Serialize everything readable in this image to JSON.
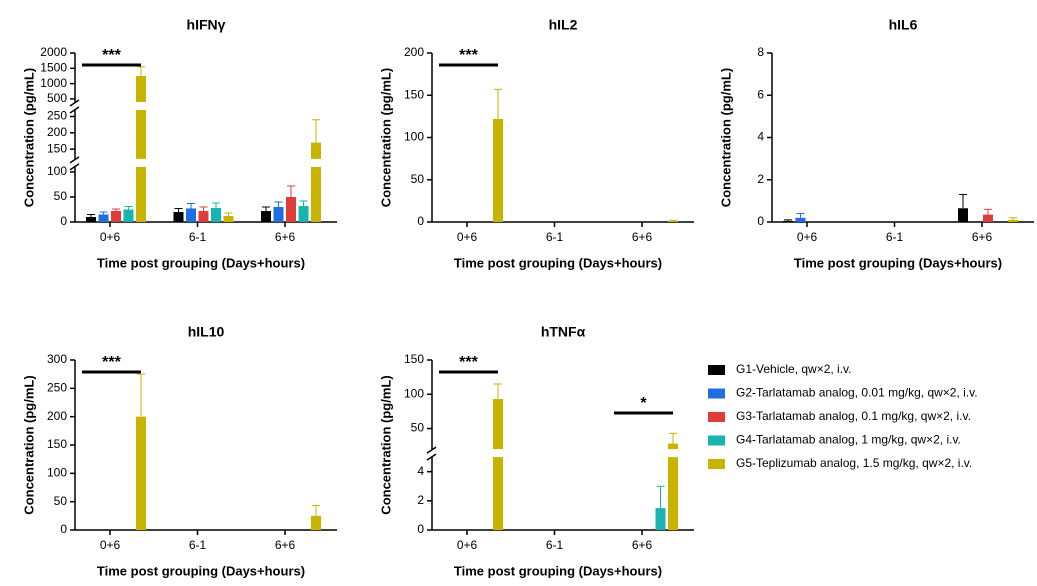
{
  "chart_data": [
    {
      "type": "bar",
      "title": "hIFNγ",
      "xlabel": "Time post grouping (Days+hours)",
      "ylabel": "Concentration (pg/mL)",
      "categories": [
        "0+6",
        "6-1",
        "6+6"
      ],
      "segments": [
        {
          "ylim": [
            0,
            110
          ],
          "yticks": [
            0,
            50,
            100
          ]
        },
        {
          "ylim": [
            120,
            270
          ],
          "yticks": [
            150,
            200,
            250
          ]
        },
        {
          "ylim": [
            400,
            2000
          ],
          "yticks": [
            500,
            1000,
            1500,
            2000
          ]
        }
      ],
      "series": [
        {
          "name": "G1-Vehicle, qw×2, i.v.",
          "color": "#000000",
          "values": [
            10,
            20,
            22
          ],
          "errors": [
            5,
            7,
            8
          ]
        },
        {
          "name": "G2-Tarlatamab analog, 0.01 mg/kg, qw×2, i.v.",
          "color": "#1f6fe0",
          "values": [
            15,
            27,
            30
          ],
          "errors": [
            5,
            10,
            10
          ]
        },
        {
          "name": "G3-Tarlatamab analog, 0.1 mg/kg, qw×2, i.v.",
          "color": "#e03c3c",
          "values": [
            22,
            22,
            50
          ],
          "errors": [
            4,
            8,
            22
          ]
        },
        {
          "name": "G4-Tarlatamab analog, 1 mg/kg, qw×2, i.v.",
          "color": "#18b4b0",
          "values": [
            25,
            28,
            32
          ],
          "errors": [
            6,
            10,
            10
          ]
        },
        {
          "name": "G5-Teplizumab analog, 1.5 mg/kg, qw×2, i.v.",
          "color": "#c8b400",
          "values": [
            1250,
            12,
            170
          ],
          "errors": [
            300,
            6,
            70
          ]
        }
      ],
      "annotations": [
        {
          "text": "***",
          "category": "0+6"
        }
      ]
    },
    {
      "type": "bar",
      "title": "hIL2",
      "xlabel": "Time post grouping (Days+hours)",
      "ylabel": "Concentration (pg/mL)",
      "categories": [
        "0+6",
        "6-1",
        "6+6"
      ],
      "ylim": [
        0,
        200
      ],
      "yticks": [
        0,
        50,
        100,
        150,
        200
      ],
      "series": [
        {
          "name": "G1-Vehicle, qw×2, i.v.",
          "color": "#000000",
          "values": [
            0,
            0,
            0
          ],
          "errors": [
            0,
            0,
            0
          ]
        },
        {
          "name": "G2-Tarlatamab analog, 0.01 mg/kg, qw×2, i.v.",
          "color": "#1f6fe0",
          "values": [
            0,
            0,
            0
          ],
          "errors": [
            0,
            0,
            0
          ]
        },
        {
          "name": "G3-Tarlatamab analog, 0.1 mg/kg, qw×2, i.v.",
          "color": "#e03c3c",
          "values": [
            0,
            0,
            0
          ],
          "errors": [
            0,
            0,
            0
          ]
        },
        {
          "name": "G4-Tarlatamab analog, 1 mg/kg, qw×2, i.v.",
          "color": "#18b4b0",
          "values": [
            0,
            0,
            0
          ],
          "errors": [
            0,
            0,
            0
          ]
        },
        {
          "name": "G5-Teplizumab analog, 1.5 mg/kg, qw×2, i.v.",
          "color": "#c8b400",
          "values": [
            122,
            0,
            1
          ],
          "errors": [
            35,
            0,
            1
          ]
        }
      ],
      "annotations": [
        {
          "text": "***",
          "category": "0+6"
        }
      ]
    },
    {
      "type": "bar",
      "title": "hIL6",
      "xlabel": "Time post grouping (Days+hours)",
      "ylabel": "Concentration (pg/mL)",
      "categories": [
        "0+6",
        "6-1",
        "6+6"
      ],
      "ylim": [
        0,
        8
      ],
      "yticks": [
        0,
        2,
        4,
        6,
        8
      ],
      "series": [
        {
          "name": "G1-Vehicle, qw×2, i.v.",
          "color": "#000000",
          "values": [
            0.05,
            0,
            0.65
          ],
          "errors": [
            0.05,
            0,
            0.65
          ]
        },
        {
          "name": "G2-Tarlatamab analog, 0.01 mg/kg, qw×2, i.v.",
          "color": "#1f6fe0",
          "values": [
            0.2,
            0,
            0
          ],
          "errors": [
            0.2,
            0,
            0
          ]
        },
        {
          "name": "G3-Tarlatamab analog, 0.1 mg/kg, qw×2, i.v.",
          "color": "#e03c3c",
          "values": [
            0,
            0,
            0.35
          ],
          "errors": [
            0,
            0,
            0.25
          ]
        },
        {
          "name": "G4-Tarlatamab analog, 1 mg/kg, qw×2, i.v.",
          "color": "#18b4b0",
          "values": [
            0,
            0,
            0
          ],
          "errors": [
            0,
            0,
            0
          ]
        },
        {
          "name": "G5-Teplizumab analog, 1.5 mg/kg, qw×2, i.v.",
          "color": "#c8b400",
          "values": [
            0,
            0,
            0.1
          ],
          "errors": [
            0,
            0,
            0.1
          ]
        }
      ]
    },
    {
      "type": "bar",
      "title": "hIL10",
      "xlabel": "Time post grouping (Days+hours)",
      "ylabel": "Concentration (pg/mL)",
      "categories": [
        "0+6",
        "6-1",
        "6+6"
      ],
      "ylim": [
        0,
        300
      ],
      "yticks": [
        0,
        50,
        100,
        150,
        200,
        250,
        300
      ],
      "series": [
        {
          "name": "G1-Vehicle, qw×2, i.v.",
          "color": "#000000",
          "values": [
            0,
            0,
            0
          ],
          "errors": [
            0,
            0,
            0
          ]
        },
        {
          "name": "G2-Tarlatamab analog, 0.01 mg/kg, qw×2, i.v.",
          "color": "#1f6fe0",
          "values": [
            0,
            0,
            0
          ],
          "errors": [
            0,
            0,
            0
          ]
        },
        {
          "name": "G3-Tarlatamab analog, 0.1 mg/kg, qw×2, i.v.",
          "color": "#e03c3c",
          "values": [
            0,
            0,
            0
          ],
          "errors": [
            0,
            0,
            0
          ]
        },
        {
          "name": "G4-Tarlatamab analog, 1 mg/kg, qw×2, i.v.",
          "color": "#18b4b0",
          "values": [
            0,
            0,
            0
          ],
          "errors": [
            0,
            0,
            0
          ]
        },
        {
          "name": "G5-Teplizumab analog, 1.5 mg/kg, qw×2, i.v.",
          "color": "#c8b400",
          "values": [
            200,
            0,
            25
          ],
          "errors": [
            75,
            0,
            18
          ]
        }
      ],
      "annotations": [
        {
          "text": "***",
          "category": "0+6"
        }
      ]
    },
    {
      "type": "bar",
      "title": "hTNFα",
      "xlabel": "Time post grouping (Days+hours)",
      "ylabel": "Concentration (pg/mL)",
      "categories": [
        "0+6",
        "6-1",
        "6+6"
      ],
      "segments": [
        {
          "ylim": [
            0,
            5
          ],
          "yticks": [
            0,
            2,
            4
          ]
        },
        {
          "ylim": [
            20,
            150
          ],
          "yticks": [
            50,
            100,
            150
          ]
        }
      ],
      "series": [
        {
          "name": "G1-Vehicle, qw×2, i.v.",
          "color": "#000000",
          "values": [
            0,
            0,
            0
          ],
          "errors": [
            0,
            0,
            0
          ]
        },
        {
          "name": "G2-Tarlatamab analog, 0.01 mg/kg, qw×2, i.v.",
          "color": "#1f6fe0",
          "values": [
            0,
            0,
            0
          ],
          "errors": [
            0,
            0,
            0
          ]
        },
        {
          "name": "G3-Tarlatamab analog, 0.1 mg/kg, qw×2, i.v.",
          "color": "#e03c3c",
          "values": [
            0,
            0,
            0
          ],
          "errors": [
            0,
            0,
            0
          ]
        },
        {
          "name": "G4-Tarlatamab analog, 1 mg/kg, qw×2, i.v.",
          "color": "#18b4b0",
          "values": [
            0,
            0,
            1.5
          ],
          "errors": [
            0,
            0,
            1.5
          ]
        },
        {
          "name": "G5-Teplizumab analog, 1.5 mg/kg, qw×2, i.v.",
          "color": "#c8b400",
          "values": [
            93,
            0,
            28
          ],
          "errors": [
            22,
            0,
            15
          ]
        }
      ],
      "annotations": [
        {
          "text": "***",
          "category": "0+6"
        },
        {
          "text": "*",
          "category": "6+6"
        }
      ],
      "legend": true
    }
  ]
}
